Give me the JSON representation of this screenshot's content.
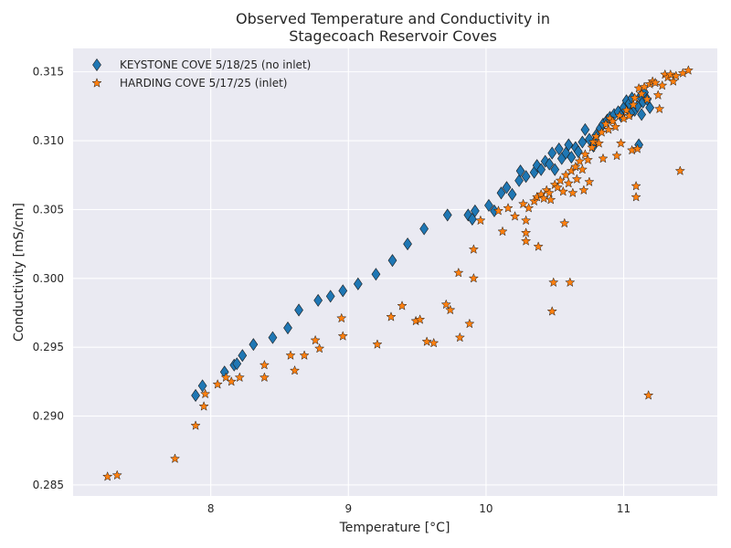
{
  "chart_data": {
    "type": "scatter",
    "title": [
      "Observed Temperature and Conductivity in",
      "Stagecoach Reservoir Coves"
    ],
    "xlabel": "Temperature [°C]",
    "ylabel": "Conductivity [mS/cm]",
    "xlim": [
      7.0,
      11.68
    ],
    "ylim": [
      0.2842,
      0.3167
    ],
    "xticks": [
      8,
      9,
      10,
      11
    ],
    "xtick_labels": [
      "8",
      "9",
      "10",
      "11"
    ],
    "yticks": [
      0.285,
      0.29,
      0.295,
      0.3,
      0.305,
      0.31,
      0.315
    ],
    "ytick_labels": [
      "0.285",
      "0.290",
      "0.295",
      "0.300",
      "0.305",
      "0.310",
      "0.315"
    ],
    "grid": true,
    "legend_position": "top-left",
    "series": [
      {
        "name": "KEYSTONE COVE 5/18/25 (no inlet)",
        "marker": "diamond",
        "color": "#1f77b4",
        "points": [
          [
            7.89,
            0.2915
          ],
          [
            7.94,
            0.2922
          ],
          [
            8.1,
            0.2932
          ],
          [
            8.17,
            0.2937
          ],
          [
            8.19,
            0.2938
          ],
          [
            8.23,
            0.2944
          ],
          [
            8.31,
            0.2952
          ],
          [
            8.45,
            0.2957
          ],
          [
            8.56,
            0.2964
          ],
          [
            8.64,
            0.2977
          ],
          [
            8.78,
            0.2984
          ],
          [
            8.87,
            0.2987
          ],
          [
            8.96,
            0.2991
          ],
          [
            9.07,
            0.2996
          ],
          [
            9.2,
            0.3003
          ],
          [
            9.32,
            0.3013
          ],
          [
            9.43,
            0.3025
          ],
          [
            9.55,
            0.3036
          ],
          [
            9.72,
            0.3046
          ],
          [
            9.87,
            0.3046
          ],
          [
            9.9,
            0.3043
          ],
          [
            9.92,
            0.3049
          ],
          [
            10.02,
            0.3053
          ],
          [
            10.06,
            0.3049
          ],
          [
            10.11,
            0.3062
          ],
          [
            10.15,
            0.3066
          ],
          [
            10.19,
            0.3061
          ],
          [
            10.24,
            0.3071
          ],
          [
            10.25,
            0.3078
          ],
          [
            10.29,
            0.3074
          ],
          [
            10.35,
            0.3077
          ],
          [
            10.37,
            0.3082
          ],
          [
            10.4,
            0.3079
          ],
          [
            10.43,
            0.3085
          ],
          [
            10.46,
            0.3083
          ],
          [
            10.48,
            0.3091
          ],
          [
            10.5,
            0.3079
          ],
          [
            10.53,
            0.3094
          ],
          [
            10.55,
            0.3087
          ],
          [
            10.58,
            0.3091
          ],
          [
            10.6,
            0.3097
          ],
          [
            10.62,
            0.3088
          ],
          [
            10.65,
            0.3095
          ],
          [
            10.67,
            0.3092
          ],
          [
            10.7,
            0.3099
          ],
          [
            10.72,
            0.3108
          ],
          [
            10.75,
            0.3101
          ],
          [
            10.78,
            0.3096
          ],
          [
            10.8,
            0.3104
          ],
          [
            10.83,
            0.3109
          ],
          [
            10.85,
            0.3112
          ],
          [
            10.88,
            0.3115
          ],
          [
            10.9,
            0.3117
          ],
          [
            10.93,
            0.3119
          ],
          [
            10.96,
            0.3121
          ],
          [
            10.98,
            0.3118
          ],
          [
            11.0,
            0.3124
          ],
          [
            11.02,
            0.3129
          ],
          [
            11.04,
            0.3127
          ],
          [
            11.06,
            0.3131
          ],
          [
            11.08,
            0.3122
          ],
          [
            11.1,
            0.3125
          ],
          [
            11.12,
            0.3132
          ],
          [
            11.14,
            0.3128
          ],
          [
            11.15,
            0.3135
          ],
          [
            11.17,
            0.313
          ],
          [
            11.19,
            0.3124
          ],
          [
            11.11,
            0.3097
          ],
          [
            11.13,
            0.3119
          ],
          [
            11.05,
            0.312
          ]
        ]
      },
      {
        "name": "HARDING COVE 5/17/25 (inlet)",
        "marker": "star",
        "color": "#ff7f0e",
        "points": [
          [
            7.25,
            0.2856
          ],
          [
            7.32,
            0.2857
          ],
          [
            7.74,
            0.2869
          ],
          [
            7.89,
            0.2893
          ],
          [
            7.95,
            0.2907
          ],
          [
            7.96,
            0.2916
          ],
          [
            8.05,
            0.2923
          ],
          [
            8.11,
            0.2928
          ],
          [
            8.15,
            0.2925
          ],
          [
            8.21,
            0.2928
          ],
          [
            8.39,
            0.2937
          ],
          [
            8.39,
            0.2928
          ],
          [
            8.58,
            0.2944
          ],
          [
            8.61,
            0.2933
          ],
          [
            8.68,
            0.2944
          ],
          [
            8.76,
            0.2955
          ],
          [
            8.79,
            0.2949
          ],
          [
            8.95,
            0.2971
          ],
          [
            8.96,
            0.2958
          ],
          [
            9.21,
            0.2952
          ],
          [
            9.31,
            0.2972
          ],
          [
            9.39,
            0.298
          ],
          [
            9.49,
            0.2969
          ],
          [
            9.52,
            0.297
          ],
          [
            9.57,
            0.2954
          ],
          [
            9.62,
            0.2953
          ],
          [
            9.71,
            0.2981
          ],
          [
            9.74,
            0.2977
          ],
          [
            9.8,
            0.3004
          ],
          [
            9.81,
            0.2957
          ],
          [
            9.88,
            0.2967
          ],
          [
            9.91,
            0.3021
          ],
          [
            9.91,
            0.3
          ],
          [
            9.96,
            0.3042
          ],
          [
            10.09,
            0.3049
          ],
          [
            10.12,
            0.3034
          ],
          [
            10.16,
            0.3051
          ],
          [
            10.21,
            0.3045
          ],
          [
            10.27,
            0.3054
          ],
          [
            10.29,
            0.3042
          ],
          [
            10.29,
            0.3033
          ],
          [
            10.29,
            0.3027
          ],
          [
            10.31,
            0.3051
          ],
          [
            10.35,
            0.3056
          ],
          [
            10.37,
            0.3059
          ],
          [
            10.38,
            0.3023
          ],
          [
            10.4,
            0.3061
          ],
          [
            10.42,
            0.3058
          ],
          [
            10.44,
            0.3064
          ],
          [
            10.46,
            0.3062
          ],
          [
            10.47,
            0.3057
          ],
          [
            10.48,
            0.2976
          ],
          [
            10.49,
            0.2997
          ],
          [
            10.5,
            0.3068
          ],
          [
            10.52,
            0.3066
          ],
          [
            10.54,
            0.3071
          ],
          [
            10.56,
            0.3063
          ],
          [
            10.57,
            0.304
          ],
          [
            10.58,
            0.3075
          ],
          [
            10.6,
            0.3069
          ],
          [
            10.61,
            0.2997
          ],
          [
            10.62,
            0.3078
          ],
          [
            10.63,
            0.3062
          ],
          [
            10.65,
            0.3081
          ],
          [
            10.66,
            0.3072
          ],
          [
            10.68,
            0.3085
          ],
          [
            10.7,
            0.3079
          ],
          [
            10.71,
            0.3064
          ],
          [
            10.72,
            0.309
          ],
          [
            10.74,
            0.3086
          ],
          [
            10.75,
            0.307
          ],
          [
            10.77,
            0.3095
          ],
          [
            10.78,
            0.3099
          ],
          [
            10.8,
            0.3103
          ],
          [
            10.82,
            0.3098
          ],
          [
            10.84,
            0.3106
          ],
          [
            10.85,
            0.3087
          ],
          [
            10.87,
            0.3112
          ],
          [
            10.89,
            0.3108
          ],
          [
            10.9,
            0.3116
          ],
          [
            10.92,
            0.3114
          ],
          [
            10.94,
            0.311
          ],
          [
            10.95,
            0.3089
          ],
          [
            10.97,
            0.3118
          ],
          [
            10.98,
            0.3098
          ],
          [
            11.0,
            0.3116
          ],
          [
            11.02,
            0.3122
          ],
          [
            11.04,
            0.3118
          ],
          [
            11.06,
            0.3093
          ],
          [
            11.07,
            0.3126
          ],
          [
            11.08,
            0.3131
          ],
          [
            11.09,
            0.3067
          ],
          [
            11.09,
            0.3059
          ],
          [
            11.1,
            0.3094
          ],
          [
            11.11,
            0.3138
          ],
          [
            11.13,
            0.3134
          ],
          [
            11.15,
            0.3139
          ],
          [
            11.17,
            0.313
          ],
          [
            11.19,
            0.3141
          ],
          [
            11.18,
            0.2915
          ],
          [
            11.21,
            0.3143
          ],
          [
            11.23,
            0.3142
          ],
          [
            11.25,
            0.3133
          ],
          [
            11.26,
            0.3123
          ],
          [
            11.28,
            0.314
          ],
          [
            11.3,
            0.3148
          ],
          [
            11.32,
            0.3146
          ],
          [
            11.34,
            0.3148
          ],
          [
            11.36,
            0.3143
          ],
          [
            11.38,
            0.3147
          ],
          [
            11.41,
            0.3078
          ],
          [
            11.43,
            0.3149
          ],
          [
            11.47,
            0.3151
          ]
        ]
      }
    ]
  }
}
